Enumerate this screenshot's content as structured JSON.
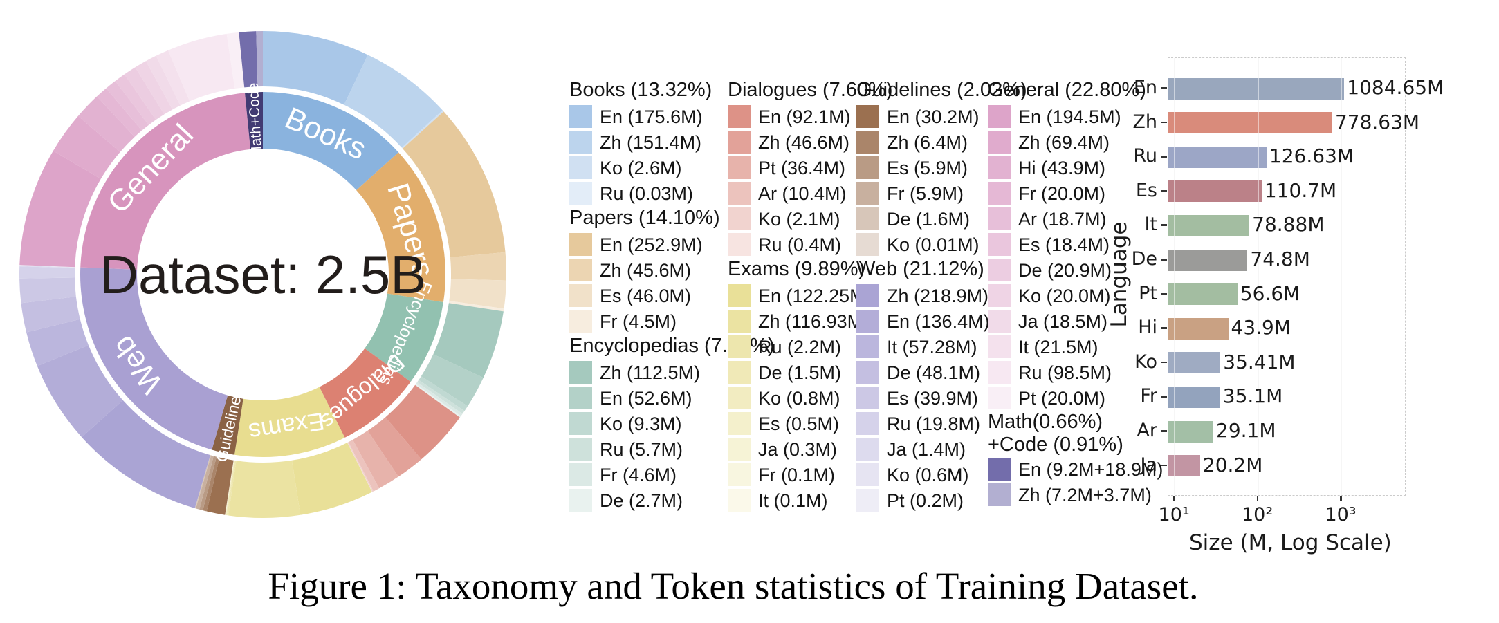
{
  "figure": {
    "caption": "Figure 1: Taxonomy and Token statistics of Training Dataset."
  },
  "chart_data": [
    {
      "type": "pie",
      "subtype": "sunburst",
      "center_label": "Dataset: 2.5B",
      "start": "top",
      "direction": "clockwise",
      "categories": [
        {
          "name": "books",
          "ring_label": "Books",
          "header": "Books (13.32%)",
          "pct": 13.32,
          "arc_color": "#8ab3de",
          "swatch_color": "#a9c7e8",
          "label_font": 44,
          "label_mode": "tangent",
          "col": 0,
          "langs": [
            {
              "code": "En",
              "label": "En (175.6M)",
              "value": 175.6
            },
            {
              "code": "Zh",
              "label": "Zh (151.4M)",
              "value": 151.4
            },
            {
              "code": "Ko",
              "label": "Ko (2.6M)",
              "value": 2.6
            },
            {
              "code": "Ru",
              "label": "Ru (0.03M)",
              "value": 0.03
            }
          ]
        },
        {
          "name": "papers",
          "ring_label": "Papers",
          "header": "Papers (14.10%)",
          "pct": 14.1,
          "arc_color": "#e2ae6c",
          "swatch_color": "#e6c99c",
          "label_font": 44,
          "label_mode": "tangent",
          "col": 0,
          "langs": [
            {
              "code": "En",
              "label": "En (252.9M)",
              "value": 252.9
            },
            {
              "code": "Zh",
              "label": "Zh (45.6M)",
              "value": 45.6
            },
            {
              "code": "Es",
              "label": "Es (46.0M)",
              "value": 46.0
            },
            {
              "code": "Fr",
              "label": "Fr (4.5M)",
              "value": 4.5
            }
          ]
        },
        {
          "name": "encyclopedias",
          "ring_label": "Encyclopedias",
          "header": "Encyclopedias (7.57%)",
          "pct": 7.57,
          "arc_color": "#92c1b0",
          "swatch_color": "#a5c9be",
          "label_font": 25,
          "label_mode": "tangent",
          "col": 0,
          "langs": [
            {
              "code": "Zh",
              "label": "Zh (112.5M)",
              "value": 112.5
            },
            {
              "code": "En",
              "label": "En (52.6M)",
              "value": 52.6
            },
            {
              "code": "Ko",
              "label": "Ko (9.3M)",
              "value": 9.3
            },
            {
              "code": "Ru",
              "label": "Ru (5.7M)",
              "value": 5.7
            },
            {
              "code": "Fr",
              "label": "Fr (4.6M)",
              "value": 4.6
            },
            {
              "code": "De",
              "label": "De (2.7M)",
              "value": 2.7
            }
          ]
        },
        {
          "name": "dialogues",
          "ring_label": "Dialogues",
          "header": "Dialogues (7.60%)",
          "pct": 7.6,
          "arc_color": "#dc8172",
          "swatch_color": "#dd9287",
          "label_font": 33,
          "label_mode": "tangent",
          "col": 1,
          "langs": [
            {
              "code": "En",
              "label": "En (92.1M)",
              "value": 92.1
            },
            {
              "code": "Zh",
              "label": "Zh (46.6M)",
              "value": 46.6
            },
            {
              "code": "Pt",
              "label": "Pt (36.4M)",
              "value": 36.4
            },
            {
              "code": "Ar",
              "label": "Ar (10.4M)",
              "value": 10.4
            },
            {
              "code": "Ko",
              "label": "Ko (2.1M)",
              "value": 2.1
            },
            {
              "code": "Ru",
              "label": "Ru (0.4M)",
              "value": 0.4
            }
          ]
        },
        {
          "name": "exams",
          "ring_label": "Exams",
          "header": "Exams (9.89%)",
          "pct": 9.89,
          "arc_color": "#e8dd90",
          "swatch_color": "#e9e098",
          "label_font": 36,
          "label_mode": "tangent",
          "col": 1,
          "langs": [
            {
              "code": "En",
              "label": "En (122.25M)",
              "value": 122.25
            },
            {
              "code": "Zh",
              "label": "Zh (116.93M)",
              "value": 116.93
            },
            {
              "code": "Ru",
              "label": "Ru (2.2M)",
              "value": 2.2
            },
            {
              "code": "De",
              "label": "De (1.5M)",
              "value": 1.5
            },
            {
              "code": "Ko",
              "label": "Ko (0.8M)",
              "value": 0.8
            },
            {
              "code": "Es",
              "label": "Es (0.5M)",
              "value": 0.5
            },
            {
              "code": "Ja",
              "label": "Ja (0.3M)",
              "value": 0.3
            },
            {
              "code": "Fr",
              "label": "Fr (0.1M)",
              "value": 0.1
            },
            {
              "code": "It",
              "label": "It (0.1M)",
              "value": 0.1
            }
          ]
        },
        {
          "name": "guidelines",
          "ring_label": "Guidelines",
          "header": "Guidelines (2.02%)",
          "pct": 2.02,
          "arc_color": "#8a6245",
          "swatch_color": "#9b7050",
          "label_font": 23,
          "label_mode": "radial_in",
          "col": 2,
          "langs": [
            {
              "code": "En",
              "label": "En (30.2M)",
              "value": 30.2
            },
            {
              "code": "Zh",
              "label": "Zh (6.4M)",
              "value": 6.4
            },
            {
              "code": "Es",
              "label": "Es (5.9M)",
              "value": 5.9
            },
            {
              "code": "Fr",
              "label": "Fr (5.9M)",
              "value": 5.9
            },
            {
              "code": "De",
              "label": "De (1.6M)",
              "value": 1.6
            },
            {
              "code": "Ko",
              "label": "Ko (0.01M)",
              "value": 0.01
            }
          ]
        },
        {
          "name": "web",
          "ring_label": "Web",
          "header": "Web (21.12%)",
          "pct": 21.12,
          "arc_color": "#a9a0d2",
          "swatch_color": "#aaa4d4",
          "label_font": 44,
          "label_mode": "tangent",
          "col": 2,
          "langs": [
            {
              "code": "Zh",
              "label": "Zh (218.9M)",
              "value": 218.9
            },
            {
              "code": "En",
              "label": "En (136.4M)",
              "value": 136.4
            },
            {
              "code": "It",
              "label": "It (57.28M)",
              "value": 57.28
            },
            {
              "code": "De",
              "label": "De (48.1M)",
              "value": 48.1
            },
            {
              "code": "Es",
              "label": "Es (39.9M)",
              "value": 39.9
            },
            {
              "code": "Ru",
              "label": "Ru (19.8M)",
              "value": 19.8
            },
            {
              "code": "Ja",
              "label": "Ja (1.4M)",
              "value": 1.4
            },
            {
              "code": "Ko",
              "label": "Ko (0.6M)",
              "value": 0.6
            },
            {
              "code": "Pt",
              "label": "Pt (0.2M)",
              "value": 0.2
            }
          ]
        },
        {
          "name": "general",
          "ring_label": "General",
          "header": "General (22.80%)",
          "pct": 22.8,
          "arc_color": "#d794bd",
          "swatch_color": "#dda4c9",
          "label_font": 44,
          "label_mode": "tangent",
          "col": 3,
          "langs": [
            {
              "code": "En",
              "label": "En (194.5M)",
              "value": 194.5
            },
            {
              "code": "Zh",
              "label": "Zh (69.4M)",
              "value": 69.4
            },
            {
              "code": "Hi",
              "label": "Hi (43.9M)",
              "value": 43.9
            },
            {
              "code": "Fr",
              "label": "Fr (20.0M)",
              "value": 20.0
            },
            {
              "code": "Ar",
              "label": "Ar (18.7M)",
              "value": 18.7
            },
            {
              "code": "Es",
              "label": "Es (18.4M)",
              "value": 18.4
            },
            {
              "code": "De",
              "label": "De (20.9M)",
              "value": 20.9
            },
            {
              "code": "Ko",
              "label": "Ko (20.0M)",
              "value": 20.0
            },
            {
              "code": "Ja",
              "label": "Ja (18.5M)",
              "value": 18.5
            },
            {
              "code": "It",
              "label": "It (21.5M)",
              "value": 21.5
            },
            {
              "code": "Ru",
              "label": "Ru (98.5M)",
              "value": 98.5
            },
            {
              "code": "Pt",
              "label": "Pt (20.0M)",
              "value": 20.0
            }
          ]
        },
        {
          "name": "mathcode",
          "ring_label": "Math+Code",
          "header_lines": [
            "Math(0.66%)",
            "+Code (0.91%)"
          ],
          "pct": 1.57,
          "arc_color": "#423b73",
          "swatch_color": "#736dab",
          "label_font": 21,
          "label_mode": "radial_out",
          "col": 3,
          "langs": [
            {
              "code": "En",
              "label": "En (9.2M+18.9M)",
              "value": 28.1
            },
            {
              "code": "Zh",
              "label": "Zh (7.2M+3.7M)",
              "value": 10.9
            }
          ]
        }
      ]
    },
    {
      "type": "bar",
      "orientation": "horizontal",
      "xlabel": "Size (M, Log Scale)",
      "ylabel": "Language",
      "xscale": "log",
      "xlim": [
        8.4,
        5800
      ],
      "xticks": [
        {
          "label": "10¹",
          "value": 10
        },
        {
          "label": "10²",
          "value": 100
        },
        {
          "label": "10³",
          "value": 1000
        }
      ],
      "categories": [
        "En",
        "Zh",
        "Ru",
        "Es",
        "It",
        "De",
        "Pt",
        "Hi",
        "Ko",
        "Fr",
        "Ar",
        "Ja"
      ],
      "values": [
        1084.65,
        778.63,
        126.63,
        110.7,
        78.88,
        74.8,
        56.6,
        43.9,
        35.41,
        35.1,
        29.1,
        20.2
      ],
      "labels": [
        "1084.65M",
        "778.63M",
        "126.63M",
        "110.7M",
        "78.88M",
        "74.8M",
        "56.6M",
        "43.9M",
        "35.41M",
        "35.1M",
        "29.1M",
        "20.2M"
      ],
      "bar_colors": [
        "#99a7bd",
        "#d98b7b",
        "#9ca6c6",
        "#bb8188",
        "#a3bda1",
        "#9b9b99",
        "#a3bda1",
        "#c9a183",
        "#9fabc2",
        "#93a3bd",
        "#a3bfa6",
        "#c295a3"
      ]
    }
  ]
}
